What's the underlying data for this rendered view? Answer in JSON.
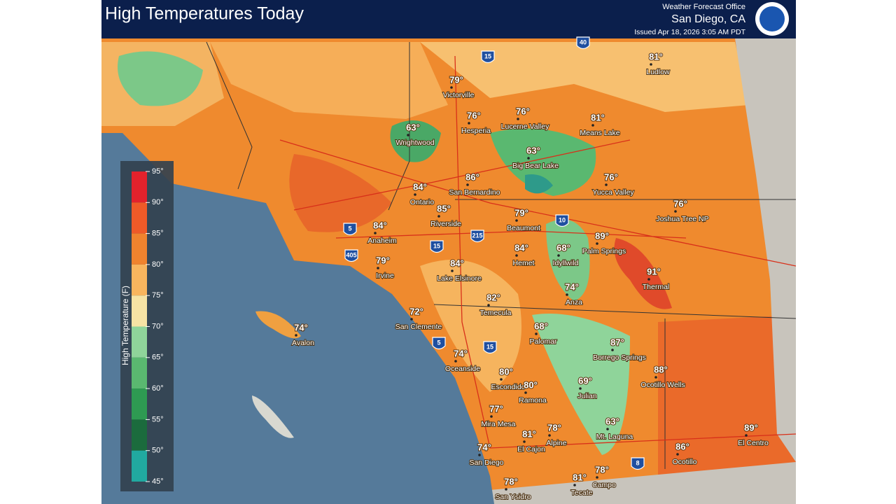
{
  "header": {
    "title": "High Temperatures Today",
    "office": "Weather Forecast Office",
    "location": "San Diego, CA",
    "issued": "Issued Apr 18, 2026 3:05 AM PDT"
  },
  "legend": {
    "title": "High Temperature (F)",
    "ticks": [
      "95°",
      "90°",
      "85°",
      "80°",
      "75°",
      "70°",
      "65°",
      "60°",
      "55°",
      "50°",
      "45°"
    ]
  },
  "cities": [
    {
      "temp": "81°",
      "name": "Ludlow"
    },
    {
      "temp": "79°",
      "name": "Victorville"
    },
    {
      "temp": "76°",
      "name": "Hesperia"
    },
    {
      "temp": "76°",
      "name": "Lucerne Valley"
    },
    {
      "temp": "81°",
      "name": "Means Lake"
    },
    {
      "temp": "63°",
      "name": "Wrightwood"
    },
    {
      "temp": "63°",
      "name": "Big Bear Lake"
    },
    {
      "temp": "86°",
      "name": "San Bernardino"
    },
    {
      "temp": "76°",
      "name": "Yucca Valley"
    },
    {
      "temp": "84°",
      "name": "Ontario"
    },
    {
      "temp": "85°",
      "name": "Riverside"
    },
    {
      "temp": "79°",
      "name": "Beaumont"
    },
    {
      "temp": "76°",
      "name": "Joshua Tree NP"
    },
    {
      "temp": "84°",
      "name": "Anaheim"
    },
    {
      "temp": "89°",
      "name": "Palm Springs"
    },
    {
      "temp": "68°",
      "name": "Idyllwild"
    },
    {
      "temp": "84°",
      "name": "Hemet"
    },
    {
      "temp": "91°",
      "name": "Thermal"
    },
    {
      "temp": "79°",
      "name": "Irvine"
    },
    {
      "temp": "84°",
      "name": "Lake Elsinore"
    },
    {
      "temp": "74°",
      "name": "Anza"
    },
    {
      "temp": "82°",
      "name": "Temecula"
    },
    {
      "temp": "72°",
      "name": "San Clemente"
    },
    {
      "temp": "68°",
      "name": "Palomar"
    },
    {
      "temp": "74°",
      "name": "Avalon"
    },
    {
      "temp": "87°",
      "name": "Borrego Springs"
    },
    {
      "temp": "74°",
      "name": "Oceanside"
    },
    {
      "temp": "88°",
      "name": "Ocotillo Wells"
    },
    {
      "temp": "80°",
      "name": "Escondido"
    },
    {
      "temp": "80°",
      "name": "Ramona"
    },
    {
      "temp": "69°",
      "name": "Julian"
    },
    {
      "temp": "77°",
      "name": "Mira Mesa"
    },
    {
      "temp": "78°",
      "name": "Alpine"
    },
    {
      "temp": "81°",
      "name": "El Cajon"
    },
    {
      "temp": "63°",
      "name": "Mt. Laguna"
    },
    {
      "temp": "89°",
      "name": "El Centro"
    },
    {
      "temp": "74°",
      "name": "San Diego"
    },
    {
      "temp": "86°",
      "name": "Ocotillo"
    },
    {
      "temp": "78°",
      "name": "Campo"
    },
    {
      "temp": "81°",
      "name": "Tecate"
    },
    {
      "temp": "78°",
      "name": "San Ysidro"
    }
  ],
  "highways": [
    "40",
    "15",
    "10",
    "215",
    "5",
    "405",
    "15",
    "5",
    "15",
    "8"
  ]
}
